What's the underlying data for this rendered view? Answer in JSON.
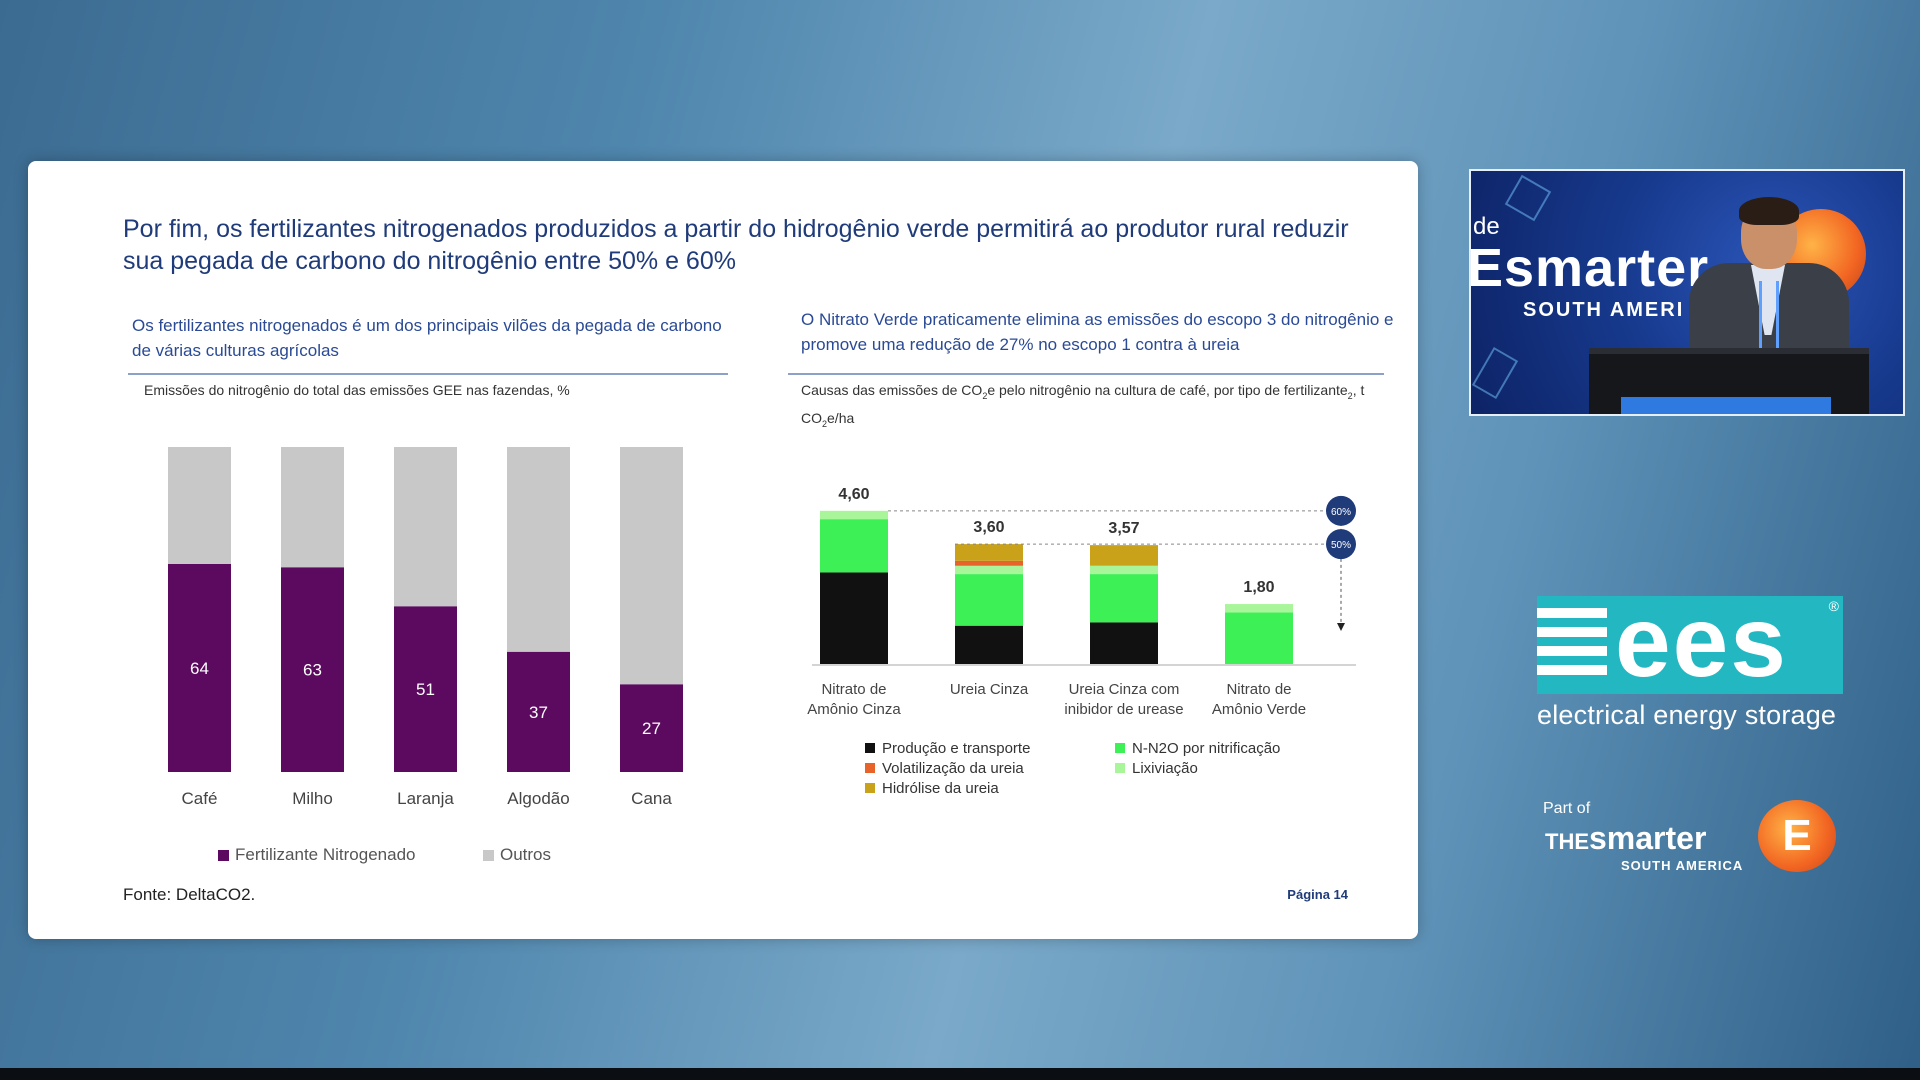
{
  "slide": {
    "title": "Por fim, os fertilizantes nitrogenados produzidos a partir do hidrogênio verde permitirá ao produtor rural reduzir sua pegada de carbono do nitrogênio entre 50% e 60%",
    "left_section_title": "Os fertilizantes nitrogenados é um dos principais vilões da pegada de carbono de várias culturas agrícolas",
    "right_section_title": "O Nitrato Verde praticamente elimina as emissões do escopo 3 do nitrogênio e promove uma redução de 27% no escopo 1 contra à ureia",
    "source": "Fonte: DeltaCO2.",
    "page": "Página 14"
  },
  "chart_data": [
    {
      "type": "bar",
      "stacked": true,
      "title": "Emissões do nitrogênio do total das emissões GEE nas fazendas, %",
      "categories": [
        "Café",
        "Milho",
        "Laranja",
        "Algodão",
        "Cana"
      ],
      "series": [
        {
          "name": "Fertilizante Nitrogenado",
          "color": "#5c0a5f",
          "values": [
            64,
            63,
            51,
            37,
            27
          ]
        },
        {
          "name": "Outros",
          "color": "#c8c8c8",
          "values": [
            36,
            37,
            49,
            63,
            73
          ]
        }
      ],
      "ylim": [
        0,
        100
      ],
      "legend": "bottom"
    },
    {
      "type": "bar",
      "stacked": true,
      "title_parts": [
        "Causas das emissões de CO",
        "2",
        "e pelo nitrogênio na cultura de café, por tipo de fertilizante",
        "2",
        ", t CO",
        "2",
        "e/ha"
      ],
      "categories": [
        [
          "Nitrato de",
          "Amônio Cinza"
        ],
        [
          "Ureia Cinza",
          ""
        ],
        [
          "Ureia Cinza com",
          "inibidor de urease"
        ],
        [
          "Nitrato de",
          "Amônio Verde"
        ]
      ],
      "totals": [
        "4,60",
        "3,60",
        "3,57",
        "1,80"
      ],
      "total_values": [
        4.6,
        3.6,
        3.57,
        1.8
      ],
      "series": [
        {
          "name": "Produção e transporte",
          "color": "#111111",
          "values": [
            2.75,
            1.15,
            1.25,
            0
          ]
        },
        {
          "name": "N-N2O por nitrificação",
          "color": "#3df055",
          "values": [
            1.6,
            1.55,
            1.45,
            1.55
          ]
        },
        {
          "name": "Lixiviação",
          "color": "#a8f59a",
          "values": [
            0.25,
            0.25,
            0.25,
            0.25
          ]
        },
        {
          "name": "Volatilização da ureia",
          "color": "#e8632a",
          "values": [
            0,
            0.15,
            0,
            0
          ]
        },
        {
          "name": "Hidrólise da ureia",
          "color": "#c9a21a",
          "values": [
            0,
            0.5,
            0.62,
            0
          ]
        }
      ],
      "ylim": [
        0,
        5
      ],
      "reference_badges": [
        "60%",
        "50%"
      ],
      "legend": "bottom"
    }
  ],
  "sidebar": {
    "video_brand_top": "de",
    "video_brand": "Esmarter",
    "video_brand_sub": "SOUTH AMERI",
    "ees_text": "ees",
    "ees_reg": "®",
    "ees_caption": "electrical energy storage",
    "partof_label": "Part of",
    "partof_the": "THE",
    "partof_name": "smarter",
    "partof_region": "SOUTH AMERICA",
    "partof_mark": "E"
  }
}
